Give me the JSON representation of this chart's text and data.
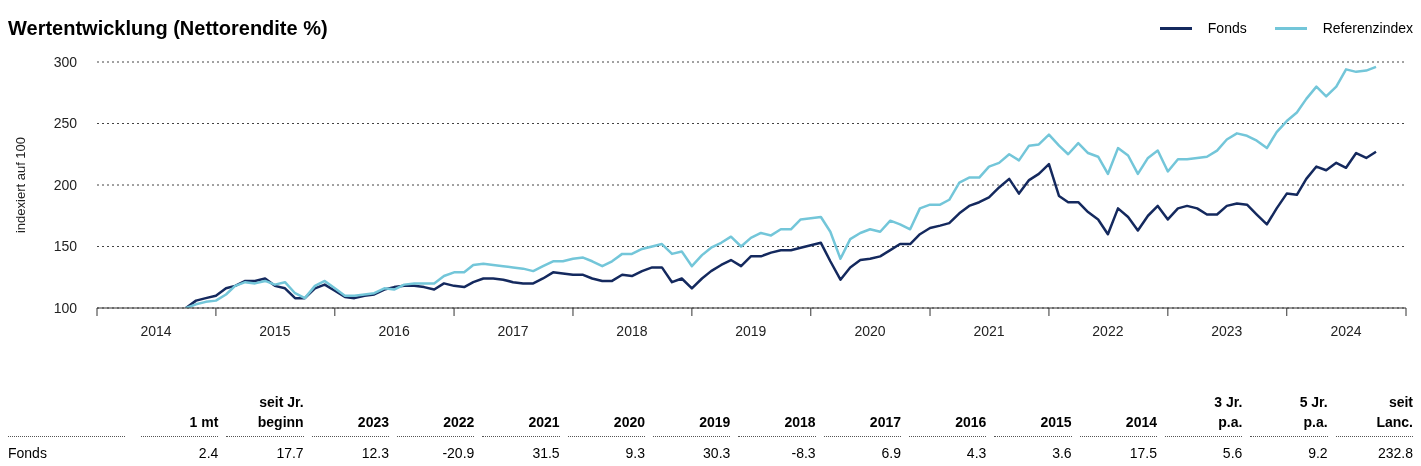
{
  "chart_data": [
    {
      "type": "line",
      "title": "Wertentwicklung (Nettorendite %)",
      "ylabel": "indexiert auf 100",
      "x": [
        "2014-10",
        "2014-11",
        "2014-12",
        "2015-01",
        "2015-02",
        "2015-03",
        "2015-04",
        "2015-05",
        "2015-06",
        "2015-07",
        "2015-08",
        "2015-09",
        "2015-10",
        "2015-11",
        "2015-12",
        "2016-01",
        "2016-02",
        "2016-03",
        "2016-04",
        "2016-05",
        "2016-06",
        "2016-07",
        "2016-08",
        "2016-09",
        "2016-10",
        "2016-11",
        "2016-12",
        "2017-01",
        "2017-02",
        "2017-03",
        "2017-04",
        "2017-05",
        "2017-06",
        "2017-07",
        "2017-08",
        "2017-09",
        "2017-10",
        "2017-11",
        "2017-12",
        "2018-01",
        "2018-02",
        "2018-03",
        "2018-04",
        "2018-05",
        "2018-06",
        "2018-07",
        "2018-08",
        "2018-09",
        "2018-10",
        "2018-11",
        "2018-12",
        "2019-01",
        "2019-02",
        "2019-03",
        "2019-04",
        "2019-05",
        "2019-06",
        "2019-07",
        "2019-08",
        "2019-09",
        "2019-10",
        "2019-11",
        "2019-12",
        "2020-01",
        "2020-02",
        "2020-03",
        "2020-04",
        "2020-05",
        "2020-06",
        "2020-07",
        "2020-08",
        "2020-09",
        "2020-10",
        "2020-11",
        "2020-12",
        "2021-01",
        "2021-02",
        "2021-03",
        "2021-04",
        "2021-05",
        "2021-06",
        "2021-07",
        "2021-08",
        "2021-09",
        "2021-10",
        "2021-11",
        "2021-12",
        "2022-01",
        "2022-02",
        "2022-03",
        "2022-04",
        "2022-05",
        "2022-06",
        "2022-07",
        "2022-08",
        "2022-09",
        "2022-10",
        "2022-11",
        "2022-12",
        "2023-01",
        "2023-02",
        "2023-03",
        "2023-04",
        "2023-05",
        "2023-06",
        "2023-07",
        "2023-08",
        "2023-09",
        "2023-10",
        "2023-11",
        "2023-12",
        "2024-01",
        "2024-02",
        "2024-03",
        "2024-04",
        "2024-05",
        "2024-06",
        "2024-07",
        "2024-08",
        "2024-09",
        "2024-10"
      ],
      "series": [
        {
          "name": "Fonds",
          "color": "#14295e",
          "values": [
            100,
            106,
            108,
            110,
            116,
            118,
            122,
            122,
            124,
            118,
            116,
            108,
            108,
            116,
            119,
            114,
            109,
            108,
            110,
            111,
            115,
            117,
            118,
            118,
            117,
            115,
            120,
            118,
            117,
            121,
            124,
            124,
            123,
            121,
            120,
            120,
            124,
            129,
            128,
            127,
            127,
            124,
            122,
            122,
            127,
            126,
            130,
            133,
            133,
            121,
            124,
            116,
            124,
            130,
            135,
            139,
            134,
            142,
            142,
            145,
            147,
            147,
            149,
            151,
            153,
            138,
            123,
            133,
            139,
            140,
            142,
            147,
            152,
            152,
            160,
            165,
            167,
            169,
            177,
            183,
            186,
            190,
            198,
            205,
            193,
            204,
            209,
            217,
            191,
            186,
            186,
            178,
            172,
            160,
            181,
            174,
            163,
            175,
            183,
            172,
            181,
            183,
            181,
            176,
            176,
            183,
            185,
            184,
            176,
            168,
            181,
            193,
            192,
            205,
            215,
            212,
            218,
            214,
            226,
            222,
            227
          ]
        },
        {
          "name": "Referenzindex",
          "color": "#73c6d9",
          "values": [
            100,
            103,
            105,
            106,
            111,
            118,
            121,
            120,
            122,
            119,
            121,
            112,
            108,
            118,
            122,
            116,
            110,
            110,
            111,
            112,
            116,
            115,
            119,
            120,
            120,
            120,
            126,
            129,
            129,
            135,
            136,
            135,
            134,
            133,
            132,
            130,
            134,
            138,
            138,
            140,
            141,
            138,
            134,
            138,
            144,
            144,
            148,
            150,
            152,
            144,
            146,
            134,
            143,
            149,
            153,
            158,
            150,
            157,
            161,
            159,
            164,
            164,
            172,
            173,
            174,
            162,
            140,
            156,
            161,
            164,
            162,
            171,
            168,
            164,
            181,
            184,
            184,
            188,
            202,
            206,
            206,
            215,
            218,
            225,
            220,
            232,
            233,
            241,
            232,
            225,
            234,
            226,
            223,
            209,
            230,
            224,
            209,
            222,
            228,
            211,
            221,
            221,
            222,
            223,
            228,
            237,
            242,
            240,
            236,
            230,
            243,
            252,
            259,
            270,
            280,
            272,
            280,
            294,
            292,
            293,
            296
          ]
        }
      ],
      "xlim": [
        "2014-01",
        "2025-01"
      ],
      "xticks": [
        {
          "value": "2014-01",
          "label": null
        },
        {
          "value": "2014-07",
          "label": "2014"
        },
        {
          "value": "2015-01",
          "label": null
        },
        {
          "value": "2015-07",
          "label": "2015"
        },
        {
          "value": "2016-01",
          "label": null
        },
        {
          "value": "2016-07",
          "label": "2016"
        },
        {
          "value": "2017-01",
          "label": null
        },
        {
          "value": "2017-07",
          "label": "2017"
        },
        {
          "value": "2018-01",
          "label": null
        },
        {
          "value": "2018-07",
          "label": "2018"
        },
        {
          "value": "2019-01",
          "label": null
        },
        {
          "value": "2019-07",
          "label": "2019"
        },
        {
          "value": "2020-01",
          "label": null
        },
        {
          "value": "2020-07",
          "label": "2020"
        },
        {
          "value": "2021-01",
          "label": null
        },
        {
          "value": "2021-07",
          "label": "2021"
        },
        {
          "value": "2022-01",
          "label": null
        },
        {
          "value": "2022-07",
          "label": "2022"
        },
        {
          "value": "2023-01",
          "label": null
        },
        {
          "value": "2023-07",
          "label": "2023"
        },
        {
          "value": "2024-01",
          "label": null
        },
        {
          "value": "2024-07",
          "label": "2024"
        },
        {
          "value": "2025-01",
          "label": null
        }
      ],
      "ylim": [
        100,
        300
      ],
      "yticks": [
        100,
        150,
        200,
        250,
        300
      ],
      "grid": "y",
      "legend": "top right",
      "marker": "none"
    },
    {
      "type": "heatmap",
      "categories": [
        "1 mt",
        "seit Jr. beginn",
        "2023",
        "2022",
        "2021",
        "2020",
        "2019",
        "2018",
        "2017",
        "2016",
        "2015",
        "2014",
        "3 Jr. p.a.",
        "5 Jr. p.a.",
        "seit Lanc."
      ],
      "y_categories": [
        "Fonds"
      ],
      "cells": [
        [
          2.4,
          17.7,
          12.3,
          -20.9,
          31.5,
          9.3,
          30.3,
          -8.3,
          6.9,
          4.3,
          3.6,
          17.5,
          5.6,
          9.2,
          232.8
        ]
      ],
      "data_labels": true
    }
  ]
}
